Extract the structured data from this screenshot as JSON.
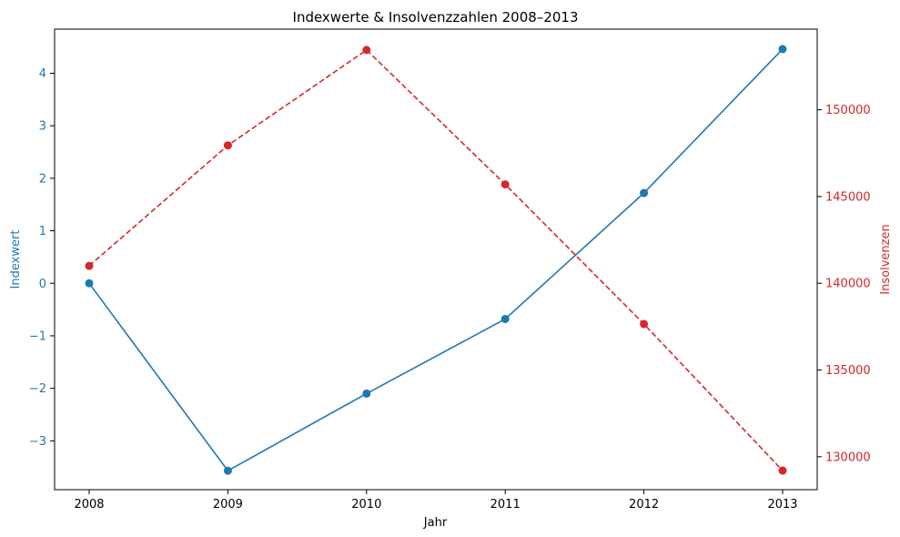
{
  "chart_data": {
    "type": "line",
    "title": "Indexwerte & Insolvenzzahlen 2008–2013",
    "xlabel": "Jahr",
    "ylabel_left": "Indexwert",
    "ylabel_right": "Insolvenzen",
    "x": [
      "2008",
      "2009",
      "2010",
      "2011",
      "2012",
      "2013"
    ],
    "ylim_left": [
      -3.93,
      4.84
    ],
    "ylim_right": [
      128100,
      154650
    ],
    "yticks_left": [
      -3,
      -2,
      -1,
      0,
      1,
      2,
      3,
      4
    ],
    "yticks_left_labels": [
      "−3",
      "−2",
      "−1",
      "0",
      "1",
      "2",
      "3",
      "4"
    ],
    "yticks_right": [
      130000,
      135000,
      140000,
      145000,
      150000
    ],
    "yticks_right_labels": [
      "130000",
      "135000",
      "140000",
      "145000",
      "150000"
    ],
    "grid": false,
    "series": [
      {
        "axis": "left",
        "color": "#1f77b4",
        "linestyle": "solid",
        "marker": "circle",
        "values": [
          0.0,
          -3.57,
          -2.1,
          -0.68,
          1.72,
          4.46
        ]
      },
      {
        "axis": "right",
        "color": "#d62728",
        "linestyle": "dashed",
        "marker": "circle",
        "values": [
          141000,
          147950,
          153450,
          145700,
          137650,
          129200
        ]
      }
    ]
  }
}
